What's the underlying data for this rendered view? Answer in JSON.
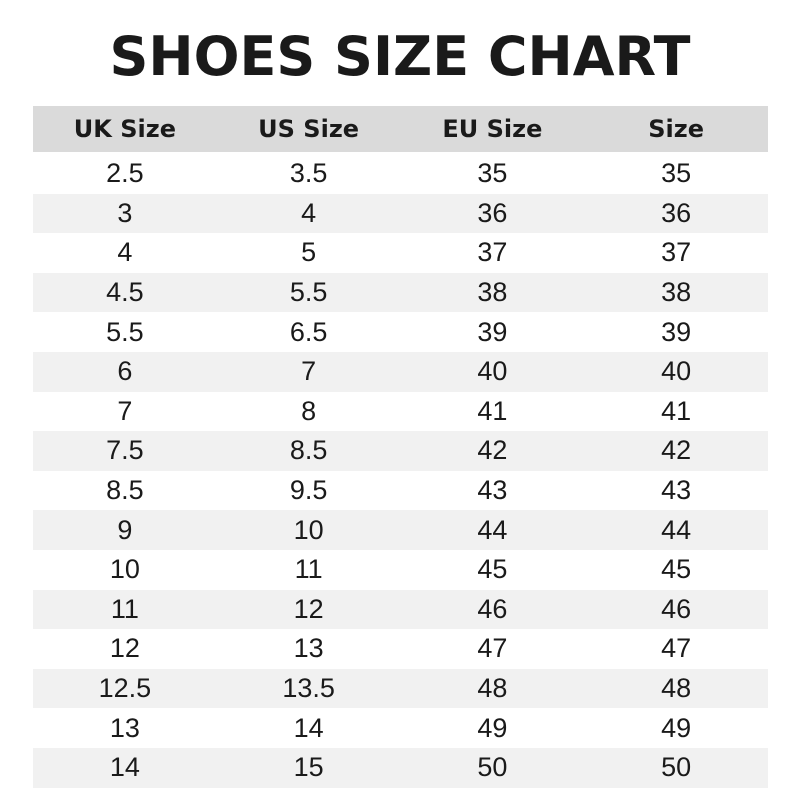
{
  "title": "SHOES SIZE CHART",
  "table": {
    "headers": [
      "UK Size",
      "US Size",
      "EU Size",
      "Size"
    ],
    "rows": [
      [
        "2.5",
        "3.5",
        "35",
        "35"
      ],
      [
        "3",
        "4",
        "36",
        "36"
      ],
      [
        "4",
        "5",
        "37",
        "37"
      ],
      [
        "4.5",
        "5.5",
        "38",
        "38"
      ],
      [
        "5.5",
        "6.5",
        "39",
        "39"
      ],
      [
        "6",
        "7",
        "40",
        "40"
      ],
      [
        "7",
        "8",
        "41",
        "41"
      ],
      [
        "7.5",
        "8.5",
        "42",
        "42"
      ],
      [
        "8.5",
        "9.5",
        "43",
        "43"
      ],
      [
        "9",
        "10",
        "44",
        "44"
      ],
      [
        "10",
        "11",
        "45",
        "45"
      ],
      [
        "11",
        "12",
        "46",
        "46"
      ],
      [
        "12",
        "13",
        "47",
        "47"
      ],
      [
        "12.5",
        "13.5",
        "48",
        "48"
      ],
      [
        "13",
        "14",
        "49",
        "49"
      ],
      [
        "14",
        "15",
        "50",
        "50"
      ]
    ]
  },
  "colors": {
    "header_bg": "#dadada",
    "stripe_bg": "#f1f1f1",
    "text": "#1a1a1a"
  }
}
